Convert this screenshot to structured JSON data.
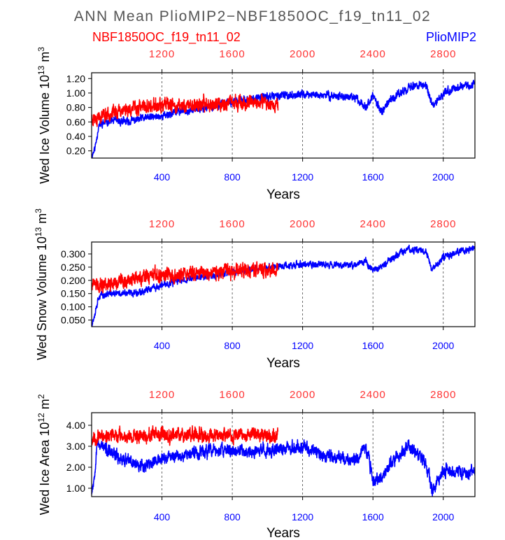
{
  "figure": {
    "title": "ANN Mean PlioMIP2−NBF1850OC_f19_tn11_02",
    "legend_red": "NBF1850OC_f19_tn11_02",
    "legend_blue": "PlioMIP2",
    "xlabel": "Years",
    "colors": {
      "red": "#ff0000",
      "blue": "#0000ff",
      "title": "#555555",
      "top_ticks": "#ff3333"
    }
  },
  "chart_data": [
    {
      "type": "line",
      "ylabel": "Wed Ice Volume 10",
      "ylabel_exp": "13",
      "ylabel_unit": " m",
      "ylabel_unit_exp": "3",
      "xlabel": "Years",
      "bottom_ticks": [
        400,
        800,
        1200,
        1600,
        2000
      ],
      "top_ticks": [
        1200,
        1600,
        2000,
        2400,
        2800
      ],
      "top_axis_offset": 800,
      "xlim": [
        0,
        2180
      ],
      "ylim": [
        0.1,
        1.28
      ],
      "yticks": [
        "0.20",
        "0.40",
        "0.60",
        "0.80",
        "1.00",
        "1.20"
      ],
      "series": [
        {
          "name": "PlioMIP2",
          "color": "#0000ff",
          "x_end": 2180,
          "noise": 0.05,
          "seed": 11,
          "anchors": [
            [
              0,
              0.12
            ],
            [
              20,
              0.25
            ],
            [
              40,
              0.55
            ],
            [
              100,
              0.62
            ],
            [
              200,
              0.6
            ],
            [
              300,
              0.65
            ],
            [
              400,
              0.68
            ],
            [
              500,
              0.75
            ],
            [
              600,
              0.78
            ],
            [
              700,
              0.82
            ],
            [
              800,
              0.88
            ],
            [
              900,
              0.92
            ],
            [
              1000,
              0.95
            ],
            [
              1200,
              0.98
            ],
            [
              1400,
              0.96
            ],
            [
              1500,
              0.93
            ],
            [
              1560,
              0.82
            ],
            [
              1600,
              0.95
            ],
            [
              1650,
              0.75
            ],
            [
              1700,
              0.9
            ],
            [
              1800,
              1.08
            ],
            [
              1900,
              1.12
            ],
            [
              1940,
              0.8
            ],
            [
              2000,
              1.0
            ],
            [
              2100,
              1.1
            ],
            [
              2180,
              1.12
            ]
          ]
        },
        {
          "name": "NBF1850OC_f19_tn11_02",
          "color": "#ff0000",
          "x_end": 1060,
          "noise": 0.09,
          "seed": 23,
          "anchors": [
            [
              0,
              0.65
            ],
            [
              100,
              0.72
            ],
            [
              200,
              0.78
            ],
            [
              300,
              0.8
            ],
            [
              400,
              0.82
            ],
            [
              500,
              0.82
            ],
            [
              600,
              0.84
            ],
            [
              700,
              0.85
            ],
            [
              800,
              0.86
            ],
            [
              900,
              0.86
            ],
            [
              1000,
              0.86
            ],
            [
              1060,
              0.85
            ]
          ]
        }
      ]
    },
    {
      "type": "line",
      "ylabel": "Wed Snow Volume 10",
      "ylabel_exp": "13",
      "ylabel_unit": " m",
      "ylabel_unit_exp": "3",
      "xlabel": "Years",
      "bottom_ticks": [
        400,
        800,
        1200,
        1600,
        2000
      ],
      "top_ticks": [
        1200,
        1600,
        2000,
        2400,
        2800
      ],
      "top_axis_offset": 800,
      "xlim": [
        0,
        2180
      ],
      "ylim": [
        0.025,
        0.345
      ],
      "yticks": [
        "0.050",
        "0.100",
        "0.150",
        "0.200",
        "0.250",
        "0.300"
      ],
      "series": [
        {
          "name": "PlioMIP2",
          "color": "#0000ff",
          "x_end": 2180,
          "noise": 0.012,
          "seed": 37,
          "anchors": [
            [
              0,
              0.03
            ],
            [
              20,
              0.08
            ],
            [
              40,
              0.14
            ],
            [
              100,
              0.15
            ],
            [
              200,
              0.15
            ],
            [
              300,
              0.16
            ],
            [
              400,
              0.18
            ],
            [
              500,
              0.2
            ],
            [
              600,
              0.21
            ],
            [
              700,
              0.22
            ],
            [
              800,
              0.23
            ],
            [
              900,
              0.24
            ],
            [
              1000,
              0.25
            ],
            [
              1200,
              0.26
            ],
            [
              1400,
              0.26
            ],
            [
              1500,
              0.26
            ],
            [
              1560,
              0.27
            ],
            [
              1600,
              0.24
            ],
            [
              1650,
              0.25
            ],
            [
              1700,
              0.28
            ],
            [
              1800,
              0.32
            ],
            [
              1900,
              0.31
            ],
            [
              1940,
              0.24
            ],
            [
              2000,
              0.29
            ],
            [
              2100,
              0.31
            ],
            [
              2180,
              0.32
            ]
          ]
        },
        {
          "name": "NBF1850OC_f19_tn11_02",
          "color": "#ff0000",
          "x_end": 1060,
          "noise": 0.025,
          "seed": 41,
          "anchors": [
            [
              0,
              0.18
            ],
            [
              100,
              0.19
            ],
            [
              200,
              0.2
            ],
            [
              300,
              0.21
            ],
            [
              400,
              0.22
            ],
            [
              500,
              0.22
            ],
            [
              600,
              0.23
            ],
            [
              700,
              0.23
            ],
            [
              800,
              0.23
            ],
            [
              900,
              0.24
            ],
            [
              1000,
              0.24
            ],
            [
              1060,
              0.24
            ]
          ]
        }
      ]
    },
    {
      "type": "line",
      "ylabel": "Wed Ice Area 10",
      "ylabel_exp": "12",
      "ylabel_unit": " m",
      "ylabel_unit_exp": "2",
      "xlabel": "Years",
      "bottom_ticks": [
        400,
        800,
        1200,
        1600,
        2000
      ],
      "top_ticks": [
        1200,
        1600,
        2000,
        2400,
        2800
      ],
      "top_axis_offset": 800,
      "xlim": [
        0,
        2180
      ],
      "ylim": [
        0.6,
        4.6
      ],
      "yticks": [
        "1.00",
        "2.00",
        "3.00",
        "4.00"
      ],
      "series": [
        {
          "name": "PlioMIP2",
          "color": "#0000ff",
          "x_end": 2180,
          "noise": 0.28,
          "seed": 53,
          "anchors": [
            [
              0,
              0.9
            ],
            [
              15,
              1.5
            ],
            [
              30,
              3.2
            ],
            [
              60,
              3.0
            ],
            [
              100,
              2.7
            ],
            [
              200,
              2.3
            ],
            [
              300,
              2.1
            ],
            [
              400,
              2.4
            ],
            [
              500,
              2.6
            ],
            [
              600,
              2.7
            ],
            [
              700,
              2.8
            ],
            [
              800,
              2.8
            ],
            [
              900,
              2.7
            ],
            [
              1000,
              2.8
            ],
            [
              1100,
              2.9
            ],
            [
              1200,
              3.0
            ],
            [
              1300,
              2.6
            ],
            [
              1400,
              2.5
            ],
            [
              1500,
              2.3
            ],
            [
              1560,
              3.0
            ],
            [
              1600,
              1.4
            ],
            [
              1650,
              1.5
            ],
            [
              1700,
              2.2
            ],
            [
              1800,
              3.0
            ],
            [
              1900,
              2.2
            ],
            [
              1940,
              0.8
            ],
            [
              2000,
              1.9
            ],
            [
              2100,
              1.8
            ],
            [
              2180,
              1.8
            ]
          ]
        },
        {
          "name": "NBF1850OC_f19_tn11_02",
          "color": "#ff0000",
          "x_end": 1060,
          "noise": 0.3,
          "seed": 67,
          "anchors": [
            [
              0,
              3.4
            ],
            [
              100,
              3.5
            ],
            [
              200,
              3.5
            ],
            [
              300,
              3.5
            ],
            [
              400,
              3.5
            ],
            [
              500,
              3.6
            ],
            [
              600,
              3.6
            ],
            [
              700,
              3.5
            ],
            [
              800,
              3.5
            ],
            [
              900,
              3.6
            ],
            [
              1000,
              3.5
            ],
            [
              1060,
              3.5
            ]
          ]
        }
      ]
    }
  ]
}
